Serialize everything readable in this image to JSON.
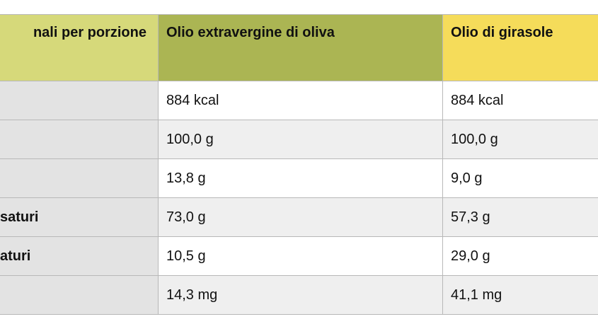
{
  "table": {
    "headers": [
      "nali  per porzione",
      "Olio extravergine di oliva",
      "Olio di girasole"
    ],
    "rows": [
      {
        "label": "",
        "olive": "884 kcal",
        "sunflower": "884 kcal"
      },
      {
        "label": "",
        "olive": "100,0 g",
        "sunflower": "100,0 g"
      },
      {
        "label": "",
        "olive": "13,8 g",
        "sunflower": "9,0 g"
      },
      {
        "label": "saturi",
        "olive": "73,0 g",
        "sunflower": "57,3 g"
      },
      {
        "label": "aturi",
        "olive": "10,5 g",
        "sunflower": "29,0 g"
      },
      {
        "label": "",
        "olive": "14,3 mg",
        "sunflower": "41,1 mg"
      }
    ]
  }
}
